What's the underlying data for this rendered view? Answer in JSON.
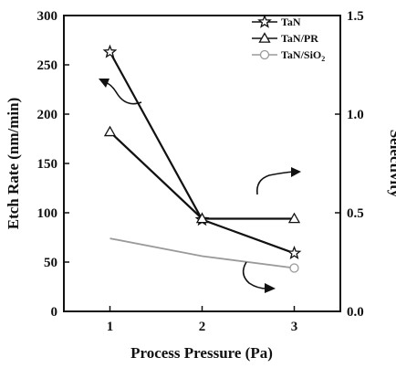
{
  "chart_data": {
    "type": "line",
    "x": [
      1,
      2,
      3
    ],
    "xlabel": "Process Pressure (Pa)",
    "xlim": [
      0.5,
      3.5
    ],
    "xticks": [
      "1",
      "2",
      "3"
    ],
    "ylabel": "Etch Rate (nm/min)",
    "ylim": [
      0,
      300
    ],
    "yticks": [
      "0",
      "50",
      "100",
      "150",
      "200",
      "250",
      "300"
    ],
    "y2label": "Selectivity",
    "y2lim": [
      0.0,
      1.5
    ],
    "y2ticks": [
      "0.0",
      "0.5",
      "1.0",
      "1.5"
    ],
    "grid": false,
    "legend_position": "top-right",
    "series": [
      {
        "name": "TaN",
        "axis": "left",
        "marker": "star",
        "color": "#111111",
        "values": [
          263,
          93,
          59
        ]
      },
      {
        "name": "TaN/PR",
        "axis": "right",
        "marker": "triangle",
        "color": "#111111",
        "values": [
          0.91,
          0.47,
          0.47
        ]
      },
      {
        "name": "TaN/SiO",
        "name_subscript": "2",
        "axis": "right",
        "marker": "circle",
        "color": "#9a9a9a",
        "values": [
          0.37,
          0.28,
          0.22
        ]
      }
    ]
  }
}
